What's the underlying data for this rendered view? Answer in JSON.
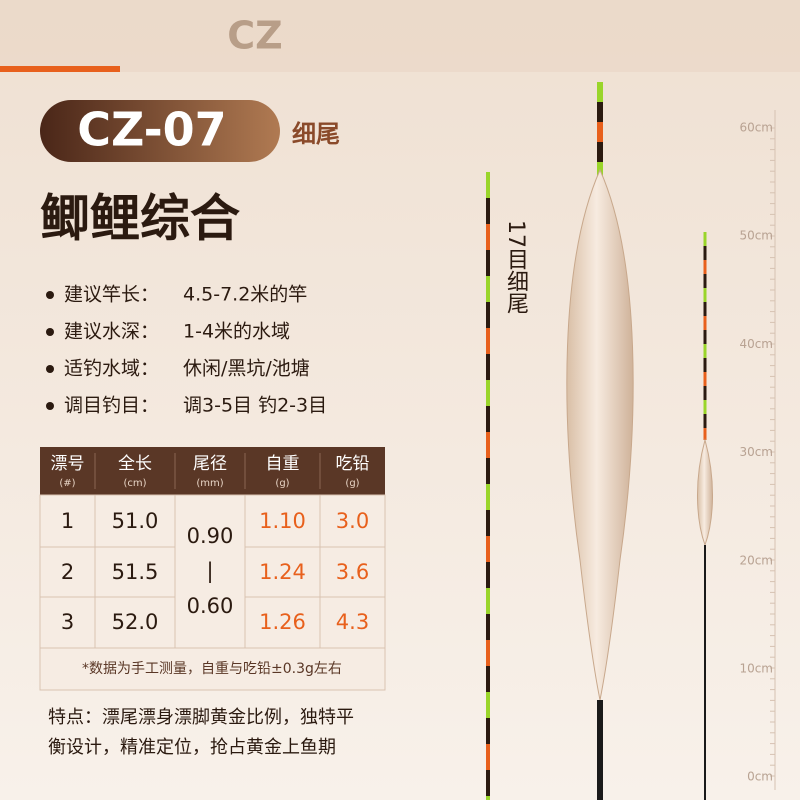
{
  "logo": "CZ",
  "header": {
    "model": "CZ-07",
    "subtitle": "细尾"
  },
  "title": "鲫鲤综合",
  "specs": [
    {
      "label": "建议竿长：",
      "value": "4.5-7.2米的竿"
    },
    {
      "label": "建议水深：",
      "value": "1-4米的水域"
    },
    {
      "label": "适钓水域：",
      "value": "休闲/黑坑/池塘"
    },
    {
      "label": "调目钓目：",
      "value": "调3-5目 钓2-3目"
    }
  ],
  "table": {
    "headers": [
      {
        "name": "漂号",
        "unit": "(#)"
      },
      {
        "name": "全长",
        "unit": "(cm)"
      },
      {
        "name": "尾径",
        "unit": "(mm)"
      },
      {
        "name": "自重",
        "unit": "(g)"
      },
      {
        "name": "吃铅",
        "unit": "(g)"
      }
    ],
    "rows": [
      [
        "1",
        "51.0",
        "1.10",
        "3.0"
      ],
      [
        "2",
        "51.5",
        "1.24",
        "3.6"
      ],
      [
        "3",
        "52.0",
        "1.26",
        "4.3"
      ]
    ],
    "tail_diameter": [
      "0.90",
      "|",
      "0.60"
    ],
    "note": "*数据为手工测量，自重与吃铅±0.3g左右"
  },
  "features": [
    "特点：漂尾漂身漂脚黄金比例，独特平",
    "衡设计，精准定位，抢占黄金上鱼期"
  ],
  "float_label": "17目细尾",
  "ruler": [
    "60cm",
    "50cm",
    "40cm",
    "30cm",
    "20cm",
    "10cm",
    "0cm"
  ]
}
